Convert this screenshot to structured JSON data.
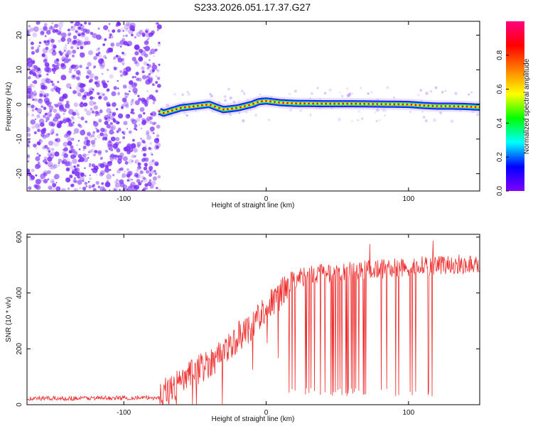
{
  "title": "S233.2026.051.17.37.G27",
  "colors": {
    "snr_line": "#ee2d2d",
    "track_core": "#e02020",
    "track_mid": "#00e0b0",
    "track_outer": "#2020ff",
    "noise": "#7a2cff",
    "colorbar": [
      "#8000ff",
      "#0000ff",
      "#00ffff",
      "#00ff00",
      "#ffff00",
      "#ff8000",
      "#ff0000",
      "#ff0080"
    ]
  },
  "chart_data": [
    {
      "type": "heatmap",
      "name": "spectrogram",
      "xlabel": "Height of straight line (km)",
      "ylabel": "Frequency (Hz)",
      "xlim": [
        -168,
        150
      ],
      "ylim": [
        -25,
        24
      ],
      "xticks": [
        -100,
        0,
        100
      ],
      "xtick_labels": [
        "-100",
        "0",
        "100"
      ],
      "yticks": [
        -20,
        -10,
        0,
        10,
        20
      ],
      "ytick_labels": [
        "-20",
        "-10",
        "0",
        "10",
        "20"
      ],
      "noise_region_x": [
        -168,
        -75
      ],
      "track": {
        "x": [
          -75,
          -72,
          -68,
          -60,
          -50,
          -40,
          -35,
          -30,
          -20,
          -10,
          -5,
          0,
          10,
          20,
          40,
          60,
          80,
          100,
          110,
          120,
          130,
          140,
          150
        ],
        "freq": [
          -2.0,
          -2.5,
          -2.0,
          -1.0,
          -0.5,
          0.0,
          -0.8,
          -1.5,
          -1.0,
          0.0,
          0.8,
          1.0,
          0.5,
          0.3,
          0.2,
          0.2,
          0.1,
          0.0,
          -0.3,
          -0.5,
          -0.5,
          -0.6,
          -0.8
        ]
      },
      "colorbar": {
        "label": "Normalized spectral amplitude",
        "range": [
          0,
          1
        ],
        "ticks": [
          0.0,
          0.2,
          0.4,
          0.6,
          0.8
        ],
        "tick_labels": [
          "0.0",
          "0.2",
          "0.4",
          "0.6",
          "0.8"
        ]
      }
    },
    {
      "type": "line",
      "name": "snr",
      "xlabel": "Height of straight line (km)",
      "ylabel": "SNR (10 * v/v)",
      "xlim": [
        -168,
        150
      ],
      "ylim": [
        0,
        610
      ],
      "xticks": [
        -100,
        0,
        100
      ],
      "xtick_labels": [
        "-100",
        "0",
        "100"
      ],
      "yticks": [
        0,
        200,
        400,
        600
      ],
      "ytick_labels": [
        "0",
        "200",
        "400",
        "600"
      ],
      "trend": {
        "x": [
          -168,
          -75,
          -70,
          -60,
          -50,
          -40,
          -30,
          -20,
          -10,
          0,
          10,
          15,
          20,
          30,
          40,
          60,
          80,
          100,
          120,
          150
        ],
        "y": [
          22,
          25,
          45,
          80,
          120,
          150,
          190,
          240,
          285,
          350,
          390,
          430,
          450,
          465,
          470,
          478,
          485,
          495,
          500,
          505
        ]
      },
      "dropouts_x_range": [
        16,
        118
      ]
    }
  ]
}
